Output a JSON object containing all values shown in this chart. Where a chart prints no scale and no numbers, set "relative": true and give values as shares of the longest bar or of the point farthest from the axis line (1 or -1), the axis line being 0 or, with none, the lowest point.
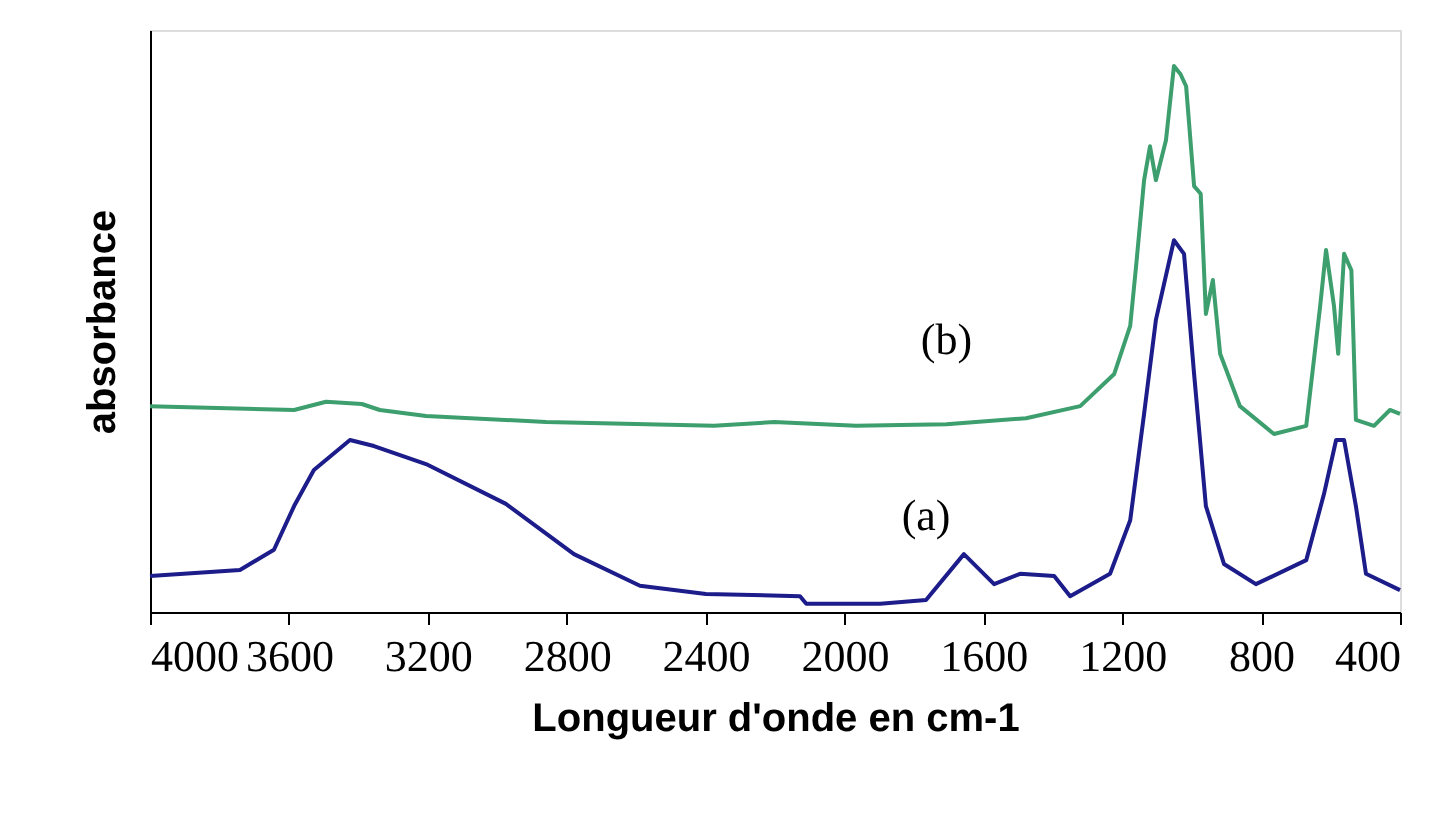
{
  "chart_data": {
    "type": "line",
    "xlabel": "Longueur d'onde en cm-1",
    "ylabel": "absorbance",
    "relative": true,
    "xlim": [
      4000,
      400
    ],
    "xticks": [
      4000,
      3600,
      3200,
      2800,
      2400,
      2000,
      1600,
      1200,
      800,
      400
    ],
    "grid": false,
    "legend": false,
    "marker": "none",
    "line_style": "solid",
    "series": [
      {
        "name": "(a)",
        "color": "#1c1c8a",
        "x": [
          4000,
          3741,
          3643,
          3585,
          3528,
          3424,
          3355,
          3205,
          2975,
          2779,
          2589,
          2399,
          2128,
          2110,
          1897,
          1765,
          1656,
          1569,
          1494,
          1396,
          1350,
          1235,
          1177,
          1137,
          1103,
          1051,
          1022,
          993,
          959,
          907,
          815,
          670,
          619,
          584,
          561,
          527,
          498,
          400
        ],
        "values": [
          0.066,
          0.077,
          0.114,
          0.194,
          0.26,
          0.315,
          0.304,
          0.271,
          0.198,
          0.106,
          0.048,
          0.033,
          0.029,
          0.015,
          0.015,
          0.022,
          0.106,
          0.051,
          0.07,
          0.066,
          0.029,
          0.07,
          0.168,
          0.363,
          0.535,
          0.681,
          0.656,
          0.436,
          0.194,
          0.088,
          0.051,
          0.095,
          0.216,
          0.315,
          0.315,
          0.194,
          0.07,
          0.04
        ]
      },
      {
        "name": "(b)",
        "color": "#3d9e6e",
        "x": [
          4000,
          3585,
          3493,
          3390,
          3338,
          3205,
          2859,
          2376,
          2203,
          1967,
          1706,
          1477,
          1321,
          1223,
          1177,
          1160,
          1137,
          1120,
          1103,
          1074,
          1051,
          1032,
          1016,
          993,
          974,
          959,
          939,
          918,
          861,
          763,
          670,
          630,
          613,
          590,
          578,
          561,
          540,
          527,
          475,
          429,
          400
        ],
        "values": [
          0.377,
          0.37,
          0.385,
          0.381,
          0.37,
          0.359,
          0.348,
          0.341,
          0.348,
          0.341,
          0.344,
          0.355,
          0.377,
          0.436,
          0.524,
          0.634,
          0.791,
          0.853,
          0.791,
          0.864,
          1,
          0.985,
          0.963,
          0.78,
          0.766,
          0.546,
          0.608,
          0.473,
          0.377,
          0.326,
          0.341,
          0.56,
          0.663,
          0.56,
          0.473,
          0.656,
          0.626,
          0.352,
          0.341,
          0.37,
          0.363
        ]
      }
    ]
  }
}
